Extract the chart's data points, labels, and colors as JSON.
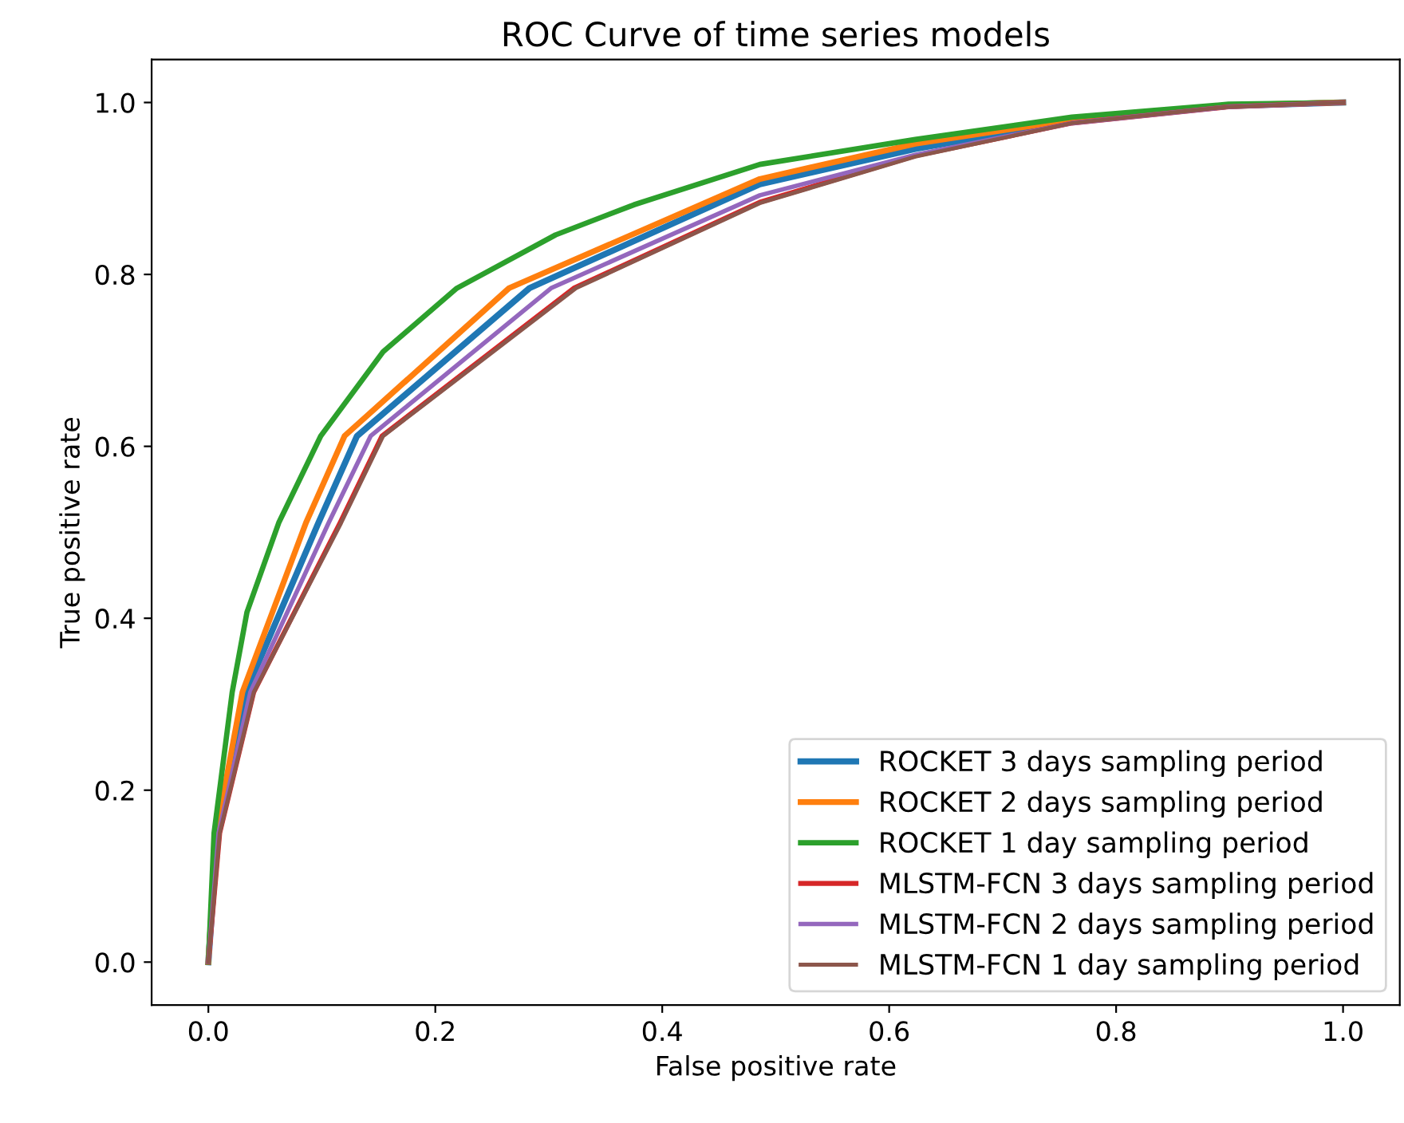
{
  "chart_data": {
    "type": "line",
    "title": "ROC Curve of time series models",
    "xlabel": "False positive rate",
    "ylabel": "True positive rate",
    "xlim": [
      -0.05,
      1.05
    ],
    "ylim": [
      -0.05,
      1.05
    ],
    "xticks": [
      {
        "value": 0,
        "label": "0.0"
      },
      0.2,
      0.4,
      0.6,
      0.8,
      {
        "value": 1,
        "label": "1.0"
      }
    ],
    "yticks": [
      {
        "value": 0,
        "label": "0.0"
      },
      0.2,
      0.4,
      0.6,
      0.8,
      {
        "value": 1,
        "label": "1.0"
      }
    ],
    "grid": false,
    "legend": "bottom right",
    "series": [
      {
        "name": "ROCKET 3 days sampling period",
        "color": "#1f77b4",
        "x": [
          0,
          0.008,
          0.033,
          0.097,
          0.131,
          0.283,
          0.486,
          0.623,
          0.761,
          0.899,
          1
        ],
        "values": [
          0,
          0.15,
          0.314,
          0.511,
          0.612,
          0.784,
          0.905,
          0.946,
          0.978,
          0.996,
          1
        ]
      },
      {
        "name": "ROCKET 2 days sampling period",
        "color": "#ff7f0e",
        "x": [
          0,
          0.007,
          0.03,
          0.086,
          0.12,
          0.265,
          0.486,
          0.623,
          0.761,
          0.899,
          1
        ],
        "values": [
          0,
          0.15,
          0.314,
          0.511,
          0.612,
          0.784,
          0.911,
          0.952,
          0.98,
          0.997,
          1
        ]
      },
      {
        "name": "ROCKET 1 day sampling period",
        "color": "#2ca02c",
        "x": [
          0,
          0.005,
          0.021,
          0.034,
          0.062,
          0.099,
          0.154,
          0.219,
          0.306,
          0.375,
          0.486,
          0.623,
          0.761,
          0.899,
          1
        ],
        "values": [
          0,
          0.15,
          0.314,
          0.407,
          0.511,
          0.612,
          0.71,
          0.784,
          0.846,
          0.881,
          0.928,
          0.957,
          0.983,
          0.998,
          1
        ]
      },
      {
        "name": "MLSTM-FCN 3 days sampling period",
        "color": "#d62728",
        "x": [
          0,
          0.01,
          0.04,
          0.116,
          0.153,
          0.322,
          0.486,
          0.623,
          0.761,
          0.899,
          1
        ],
        "values": [
          0,
          0.15,
          0.314,
          0.511,
          0.612,
          0.784,
          0.884,
          0.938,
          0.976,
          0.995,
          1
        ]
      },
      {
        "name": "MLSTM-FCN 2 days sampling period",
        "color": "#9467bd",
        "x": [
          0,
          0.009,
          0.037,
          0.106,
          0.143,
          0.302,
          0.486,
          0.623,
          0.761,
          0.899,
          1
        ],
        "values": [
          0,
          0.15,
          0.314,
          0.511,
          0.612,
          0.784,
          0.892,
          0.939,
          0.976,
          0.995,
          1
        ]
      },
      {
        "name": "MLSTM-FCN 1 day sampling period",
        "color": "#8c564b",
        "x": [
          0,
          0.01,
          0.04,
          0.117,
          0.154,
          0.324,
          0.486,
          0.623,
          0.761,
          0.899,
          1
        ],
        "values": [
          0,
          0.15,
          0.314,
          0.511,
          0.612,
          0.784,
          0.883,
          0.937,
          0.976,
          0.995,
          1
        ]
      }
    ]
  }
}
